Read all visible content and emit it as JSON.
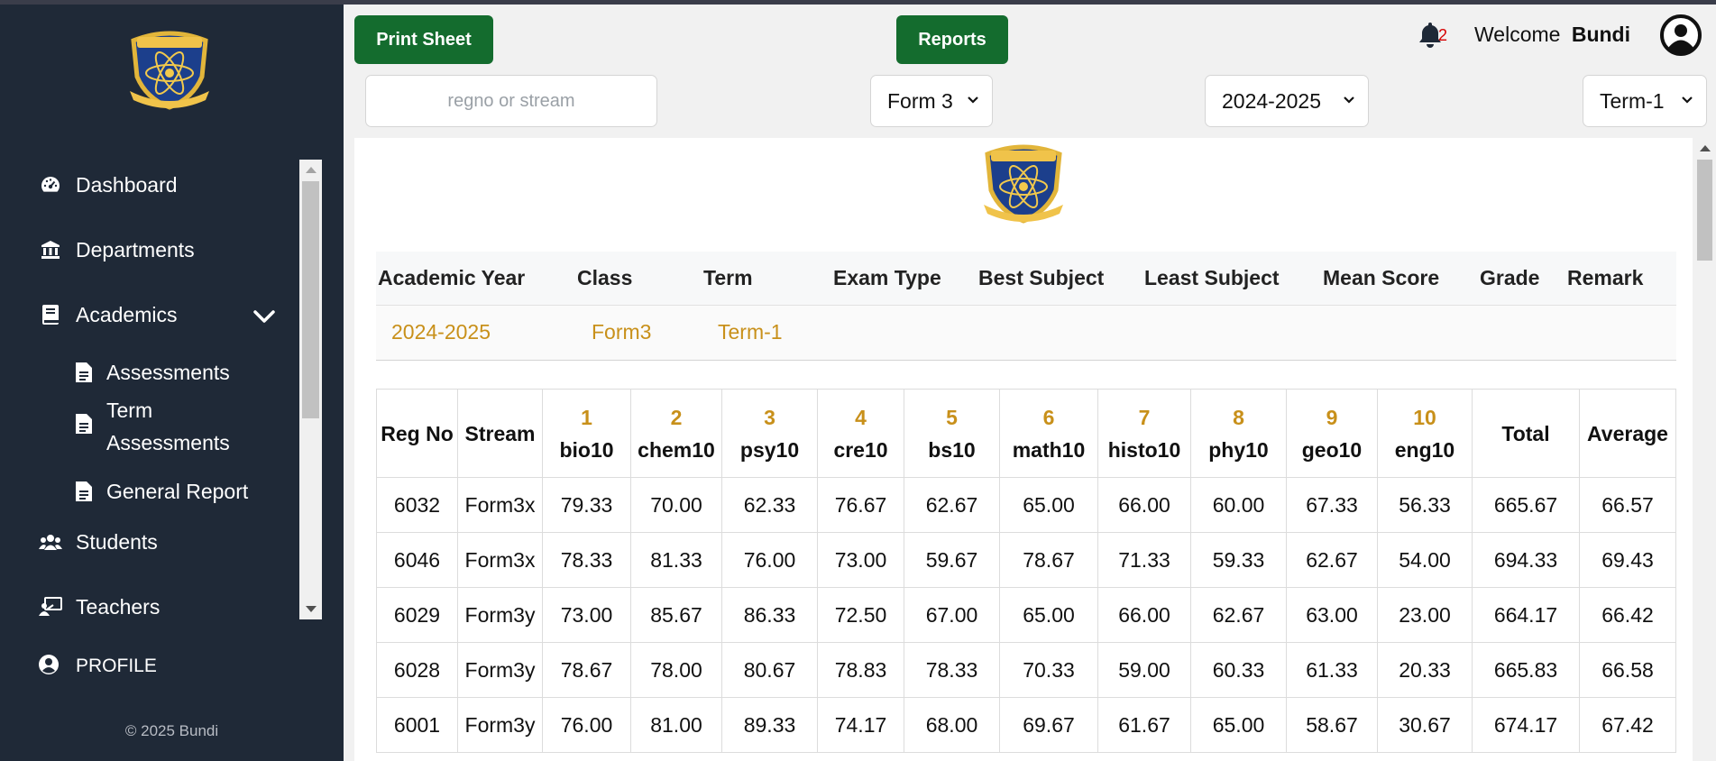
{
  "sidebar": {
    "nav": [
      {
        "label": "Dashboard",
        "icon": "tachometer-icon"
      },
      {
        "label": "Departments",
        "icon": "bank-icon"
      },
      {
        "label": "Academics",
        "icon": "book-icon"
      }
    ],
    "academics_sub": [
      {
        "label": "Assessments",
        "icon": "document-icon"
      },
      {
        "label": "Term Assessments",
        "icon": "document-icon"
      },
      {
        "label": "General Report",
        "icon": "document-icon"
      }
    ],
    "nav_after": [
      {
        "label": "Students",
        "icon": "users-icon"
      },
      {
        "label": "Teachers",
        "icon": "teacher-icon"
      }
    ],
    "profile_label": "PROFILE",
    "footer": "© 2025 Bundi"
  },
  "header": {
    "print_label": "Print Sheet",
    "reports_label": "Reports",
    "notification_count": "2",
    "welcome_text": "Welcome",
    "username": "Bundi"
  },
  "filters": {
    "search_placeholder": "regno or stream",
    "form": "Form 3",
    "year": "2024-2025",
    "term": "Term-1"
  },
  "summary": {
    "headers": [
      "Academic Year",
      "Class",
      "Term",
      "Exam Type",
      "Best Subject",
      "Least Subject",
      "Mean Score",
      "Grade",
      "Remark"
    ],
    "values": {
      "academic_year": "2024-2025",
      "class": "Form3",
      "term": "Term-1"
    }
  },
  "table": {
    "fixed_headers": [
      "Reg No",
      "Stream"
    ],
    "subjects": [
      {
        "num": "1",
        "code": "bio10"
      },
      {
        "num": "2",
        "code": "chem10"
      },
      {
        "num": "3",
        "code": "psy10"
      },
      {
        "num": "4",
        "code": "cre10"
      },
      {
        "num": "5",
        "code": "bs10"
      },
      {
        "num": "6",
        "code": "math10"
      },
      {
        "num": "7",
        "code": "histo10"
      },
      {
        "num": "8",
        "code": "phy10"
      },
      {
        "num": "9",
        "code": "geo10"
      },
      {
        "num": "10",
        "code": "eng10"
      }
    ],
    "tail_headers": [
      "Total",
      "Average"
    ],
    "rows": [
      [
        "6032",
        "Form3x",
        "79.33",
        "70.00",
        "62.33",
        "76.67",
        "62.67",
        "65.00",
        "66.00",
        "60.00",
        "67.33",
        "56.33",
        "665.67",
        "66.57"
      ],
      [
        "6046",
        "Form3x",
        "78.33",
        "81.33",
        "76.00",
        "73.00",
        "59.67",
        "78.67",
        "71.33",
        "59.33",
        "62.67",
        "54.00",
        "694.33",
        "69.43"
      ],
      [
        "6029",
        "Form3y",
        "73.00",
        "85.67",
        "86.33",
        "72.50",
        "67.00",
        "65.00",
        "66.00",
        "62.67",
        "63.00",
        "23.00",
        "664.17",
        "66.42"
      ],
      [
        "6028",
        "Form3y",
        "78.67",
        "78.00",
        "80.67",
        "78.83",
        "78.33",
        "70.33",
        "59.00",
        "60.33",
        "61.33",
        "20.33",
        "665.83",
        "66.58"
      ],
      [
        "6001",
        "Form3y",
        "76.00",
        "81.00",
        "89.33",
        "74.17",
        "68.00",
        "69.67",
        "61.67",
        "65.00",
        "58.67",
        "30.67",
        "674.17",
        "67.42"
      ]
    ]
  },
  "colors": {
    "sidebar_bg": "#1f2937",
    "button_green": "#146c2e",
    "accent_gold": "#c8901a",
    "badge_red": "#d60000"
  }
}
